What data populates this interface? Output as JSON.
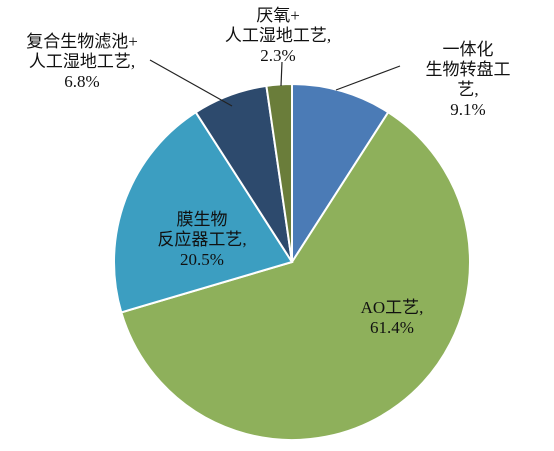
{
  "chart_data": {
    "type": "pie",
    "categories": [
      "一体化\n生物转盘工艺,",
      "AO工艺,",
      "膜生物\n反应器工艺,",
      "复合生物滤池+\n人工湿地工艺,",
      "厌氧+\n人工湿地工艺,"
    ],
    "values": [
      9.1,
      61.4,
      20.5,
      6.8,
      2.3
    ],
    "value_labels": [
      "9.1%",
      "61.4%",
      "20.5%",
      "6.8%",
      "2.3%"
    ],
    "colors": [
      "#4b7bb6",
      "#8eb05b",
      "#3c9ec1",
      "#2d4a6d",
      "#6a7d3a"
    ]
  }
}
